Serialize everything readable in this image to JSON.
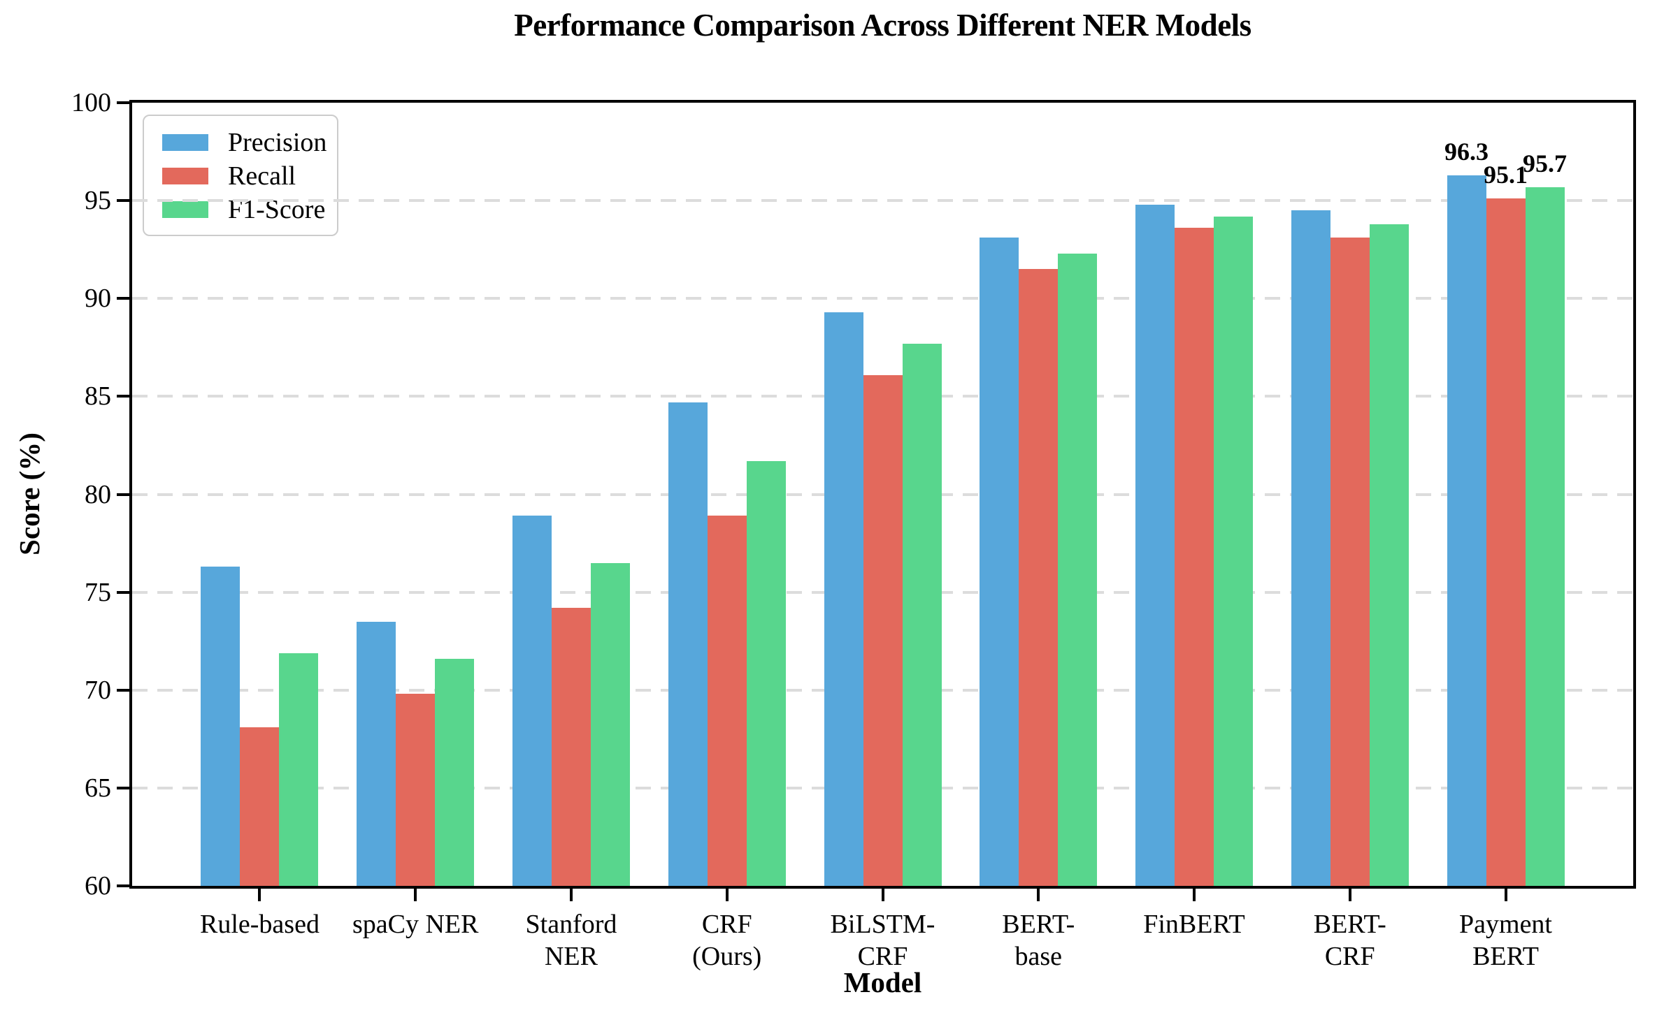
{
  "title": "Performance Comparison Across Different NER Models",
  "chart_data": {
    "type": "bar",
    "title": "Performance Comparison Across Different NER Models",
    "xlabel": "Model",
    "ylabel": "Score (%)",
    "ylim": [
      60,
      100
    ],
    "yticks": [
      60,
      65,
      70,
      75,
      80,
      85,
      90,
      95,
      100
    ],
    "grid": "horizontal-dashed",
    "grid_color": "#dcdcdc",
    "legend_position": "upper-left",
    "categories": [
      "Rule-based",
      "spaCy NER",
      "Stanford\nNER",
      "CRF\n(Ours)",
      "BiLSTM-\nCRF",
      "BERT-\nbase",
      "FinBERT",
      "BERT-\nCRF",
      "Payment\nBERT"
    ],
    "series": [
      {
        "name": "Precision",
        "color": "#57a7db",
        "values": [
          76.3,
          73.5,
          78.9,
          84.7,
          89.3,
          93.1,
          94.8,
          94.5,
          96.3
        ]
      },
      {
        "name": "Recall",
        "color": "#e3695c",
        "values": [
          68.1,
          69.8,
          74.2,
          78.9,
          86.1,
          91.5,
          93.6,
          93.1,
          95.1
        ]
      },
      {
        "name": "F1-Score",
        "color": "#58d68d",
        "values": [
          71.9,
          71.6,
          76.5,
          81.7,
          87.7,
          92.3,
          94.2,
          93.8,
          95.7
        ]
      }
    ],
    "annotations": {
      "group_index": 8,
      "labels": [
        "96.3",
        "95.1",
        "95.7"
      ]
    }
  }
}
